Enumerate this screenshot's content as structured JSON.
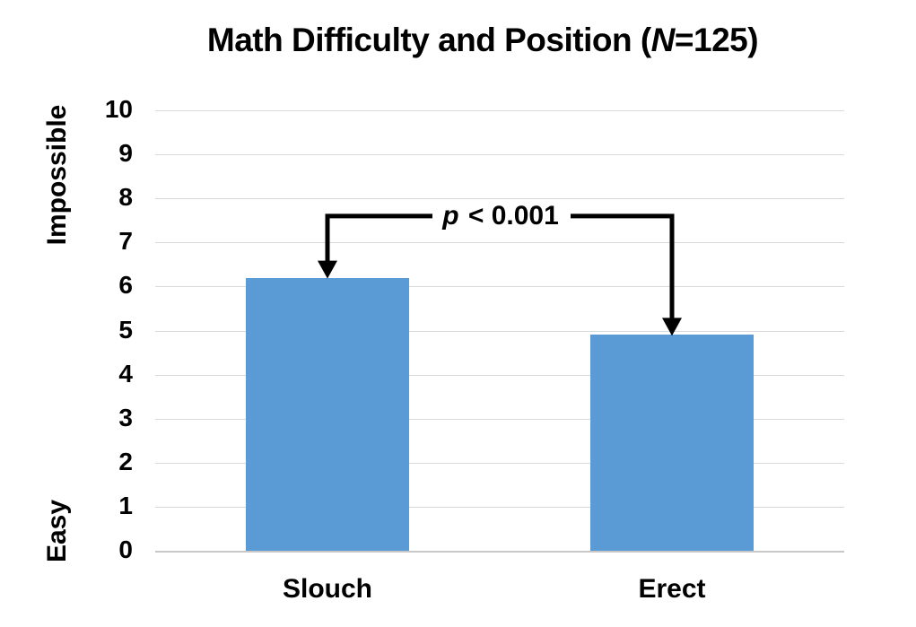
{
  "title": {
    "prefix": "Math Difficulty and Position (",
    "italic": "N",
    "suffix": "=125)"
  },
  "y_axis": {
    "label_top": "Impossible",
    "label_bottom": "Easy",
    "ticks": [
      10,
      9,
      8,
      7,
      6,
      5,
      4,
      3,
      2,
      1,
      0
    ]
  },
  "annotation": {
    "symbol": "p",
    "text": " < 0.001",
    "line_value": 7.6
  },
  "chart_data": {
    "type": "bar",
    "categories": [
      "Slouch",
      "Erect"
    ],
    "values": [
      6.2,
      4.9
    ],
    "title": "Math Difficulty and Position (N=125)",
    "xlabel": "",
    "ylabel": "Impossible (top) to Easy (bottom)",
    "ylim": [
      0,
      10
    ],
    "yticks": [
      0,
      1,
      2,
      3,
      4,
      5,
      6,
      7,
      8,
      9,
      10
    ],
    "bar_color": "#5B9BD5",
    "gridline_color": "#D9D9D9",
    "grid": "horizontal",
    "legend_position": "none",
    "annotation_text": "p < 0.001"
  }
}
